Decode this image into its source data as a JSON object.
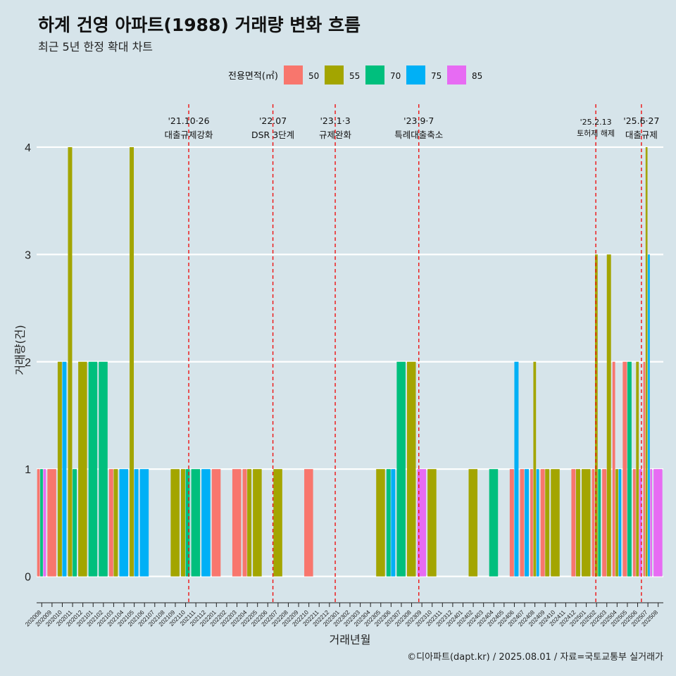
{
  "title": "하계 건영 아파트(1988) 거래량 변화 흐름",
  "subtitle": "최근 5년 한정 확대 차트",
  "caption": "©디아파트(dapt.kr) / 2025.08.01 / 자료=국토교통부 실거래가",
  "chart_data": {
    "type": "bar",
    "xlabel": "거래년월",
    "ylabel": "거래량(건)",
    "ylim": [
      -0.18,
      4.4
    ],
    "yticks": [
      0,
      1,
      2,
      3,
      4
    ],
    "legend_title": "전용면적(㎡)",
    "legend_position": "top",
    "grid": "horizontal",
    "categories": [
      "202008",
      "202009",
      "202010",
      "202011",
      "202012",
      "202101",
      "202102",
      "202103",
      "202104",
      "202105",
      "202106",
      "202107",
      "202108",
      "202109",
      "202110",
      "202111",
      "202112",
      "202201",
      "202202",
      "202203",
      "202204",
      "202205",
      "202206",
      "202207",
      "202208",
      "202209",
      "202210",
      "202211",
      "202212",
      "202301",
      "202302",
      "202303",
      "202304",
      "202305",
      "202306",
      "202307",
      "202308",
      "202309",
      "202310",
      "202311",
      "202312",
      "202401",
      "202402",
      "202403",
      "202404",
      "202405",
      "202406",
      "202407",
      "202408",
      "202409",
      "202410",
      "202411",
      "202412",
      "202501",
      "202502",
      "202503",
      "202504",
      "202505",
      "202506",
      "202507",
      "202508"
    ],
    "series": [
      {
        "name": "50",
        "color": "#f8766d",
        "values": [
          1,
          1,
          0,
          0,
          0,
          0,
          0,
          1,
          0,
          0,
          0,
          0,
          0,
          0,
          0,
          0,
          0,
          1,
          0,
          1,
          1,
          0,
          0,
          0,
          0,
          0,
          1,
          0,
          0,
          0,
          0,
          0,
          0,
          0,
          0,
          0,
          0,
          0,
          0,
          0,
          0,
          0,
          0,
          0,
          0,
          0,
          1,
          1,
          1,
          1,
          0,
          0,
          1,
          0,
          1,
          1,
          2,
          2,
          1,
          2,
          0
        ]
      },
      {
        "name": "55",
        "color": "#a3a500",
        "values": [
          0,
          0,
          2,
          4,
          2,
          0,
          0,
          1,
          0,
          4,
          0,
          0,
          0,
          1,
          1,
          0,
          0,
          0,
          0,
          0,
          1,
          1,
          0,
          1,
          0,
          0,
          0,
          0,
          0,
          0,
          0,
          0,
          0,
          1,
          0,
          0,
          2,
          0,
          1,
          0,
          0,
          0,
          1,
          0,
          0,
          0,
          0,
          0,
          2,
          1,
          1,
          0,
          1,
          1,
          3,
          3,
          1,
          0,
          2,
          4,
          0
        ]
      },
      {
        "name": "70",
        "color": "#00bf7d",
        "values": [
          1,
          0,
          0,
          1,
          0,
          2,
          2,
          0,
          0,
          0,
          0,
          0,
          0,
          0,
          1,
          1,
          0,
          0,
          0,
          0,
          0,
          0,
          0,
          0,
          0,
          0,
          0,
          0,
          0,
          0,
          0,
          0,
          0,
          0,
          1,
          2,
          0,
          0,
          0,
          0,
          0,
          0,
          0,
          0,
          1,
          0,
          0,
          0,
          0,
          0,
          0,
          0,
          0,
          0,
          1,
          0,
          0,
          2,
          0,
          0,
          0
        ]
      },
      {
        "name": "75",
        "color": "#00b0f6",
        "values": [
          0,
          0,
          2,
          0,
          0,
          0,
          0,
          0,
          1,
          1,
          1,
          0,
          0,
          0,
          0,
          0,
          1,
          0,
          0,
          0,
          0,
          0,
          0,
          0,
          0,
          0,
          0,
          0,
          0,
          0,
          0,
          0,
          0,
          0,
          1,
          0,
          0,
          0,
          0,
          0,
          0,
          0,
          0,
          0,
          0,
          0,
          2,
          1,
          1,
          0,
          0,
          0,
          0,
          0,
          0,
          0,
          1,
          0,
          0,
          3,
          0
        ]
      },
      {
        "name": "85",
        "color": "#e76bf3",
        "values": [
          1,
          0,
          0,
          0,
          0,
          0,
          0,
          0,
          0,
          0,
          0,
          0,
          0,
          0,
          0,
          0,
          0,
          0,
          0,
          0,
          0,
          0,
          0,
          0,
          0,
          0,
          0,
          0,
          0,
          0,
          0,
          0,
          0,
          0,
          0,
          0,
          0,
          1,
          0,
          0,
          0,
          0,
          0,
          0,
          0,
          0,
          0,
          0,
          0,
          0,
          0,
          0,
          0,
          0,
          0,
          0,
          0,
          0,
          1,
          1,
          1
        ]
      }
    ],
    "events": [
      {
        "date": "2021-10-26",
        "label1": "'21.10·26",
        "label2": "대출규제강화"
      },
      {
        "date": "2022-07-01",
        "label1": "'22.07",
        "label2": "DSR 3단계"
      },
      {
        "date": "2023-01-03",
        "label1": "'23.1·3",
        "label2": "규제완화"
      },
      {
        "date": "2023-09-07",
        "label1": "'23.9·7",
        "label2": "특례대출축소"
      },
      {
        "date": "2025-02-13",
        "label1": "'25.2.13",
        "label2": "토허제 해제"
      },
      {
        "date": "2025-06-27",
        "label1": "'25.6·27",
        "label2": "대출규제"
      }
    ]
  }
}
